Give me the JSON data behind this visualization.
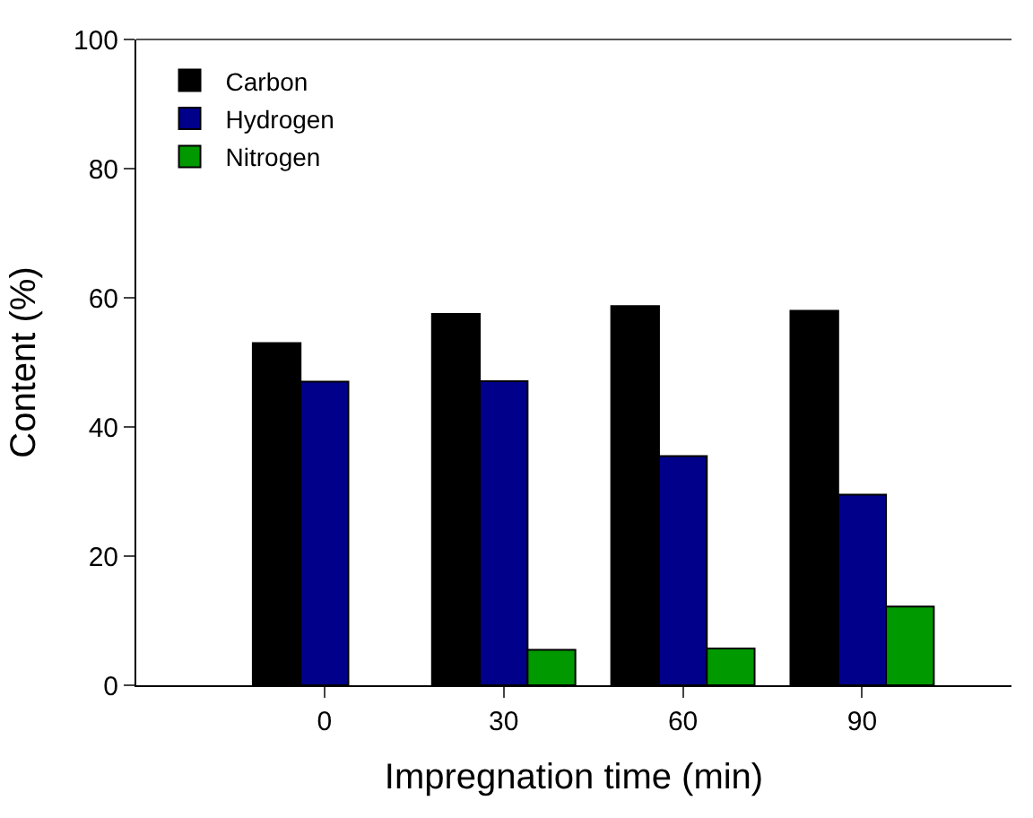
{
  "chart_data": {
    "type": "bar",
    "xlabel": "Impregnation time (min)",
    "ylabel": "Content (%)",
    "x": [
      0,
      30,
      60,
      90
    ],
    "series": [
      {
        "name": "Carbon",
        "color": "#000000",
        "values": [
          53.0,
          57.5,
          58.7,
          58.0
        ]
      },
      {
        "name": "Hydrogen",
        "color": "#00008b",
        "values": [
          47.0,
          47.1,
          35.5,
          29.5
        ]
      },
      {
        "name": "Nitrogen",
        "color": "#009900",
        "values": [
          null,
          5.5,
          5.7,
          12.2
        ]
      }
    ],
    "xlim": [
      -31.5,
      115
    ],
    "xticks": [
      0,
      30,
      60,
      90
    ],
    "ylim": [
      0,
      100
    ],
    "yticks": [
      0,
      20,
      40,
      60,
      80,
      100
    ],
    "legend": "top left"
  }
}
